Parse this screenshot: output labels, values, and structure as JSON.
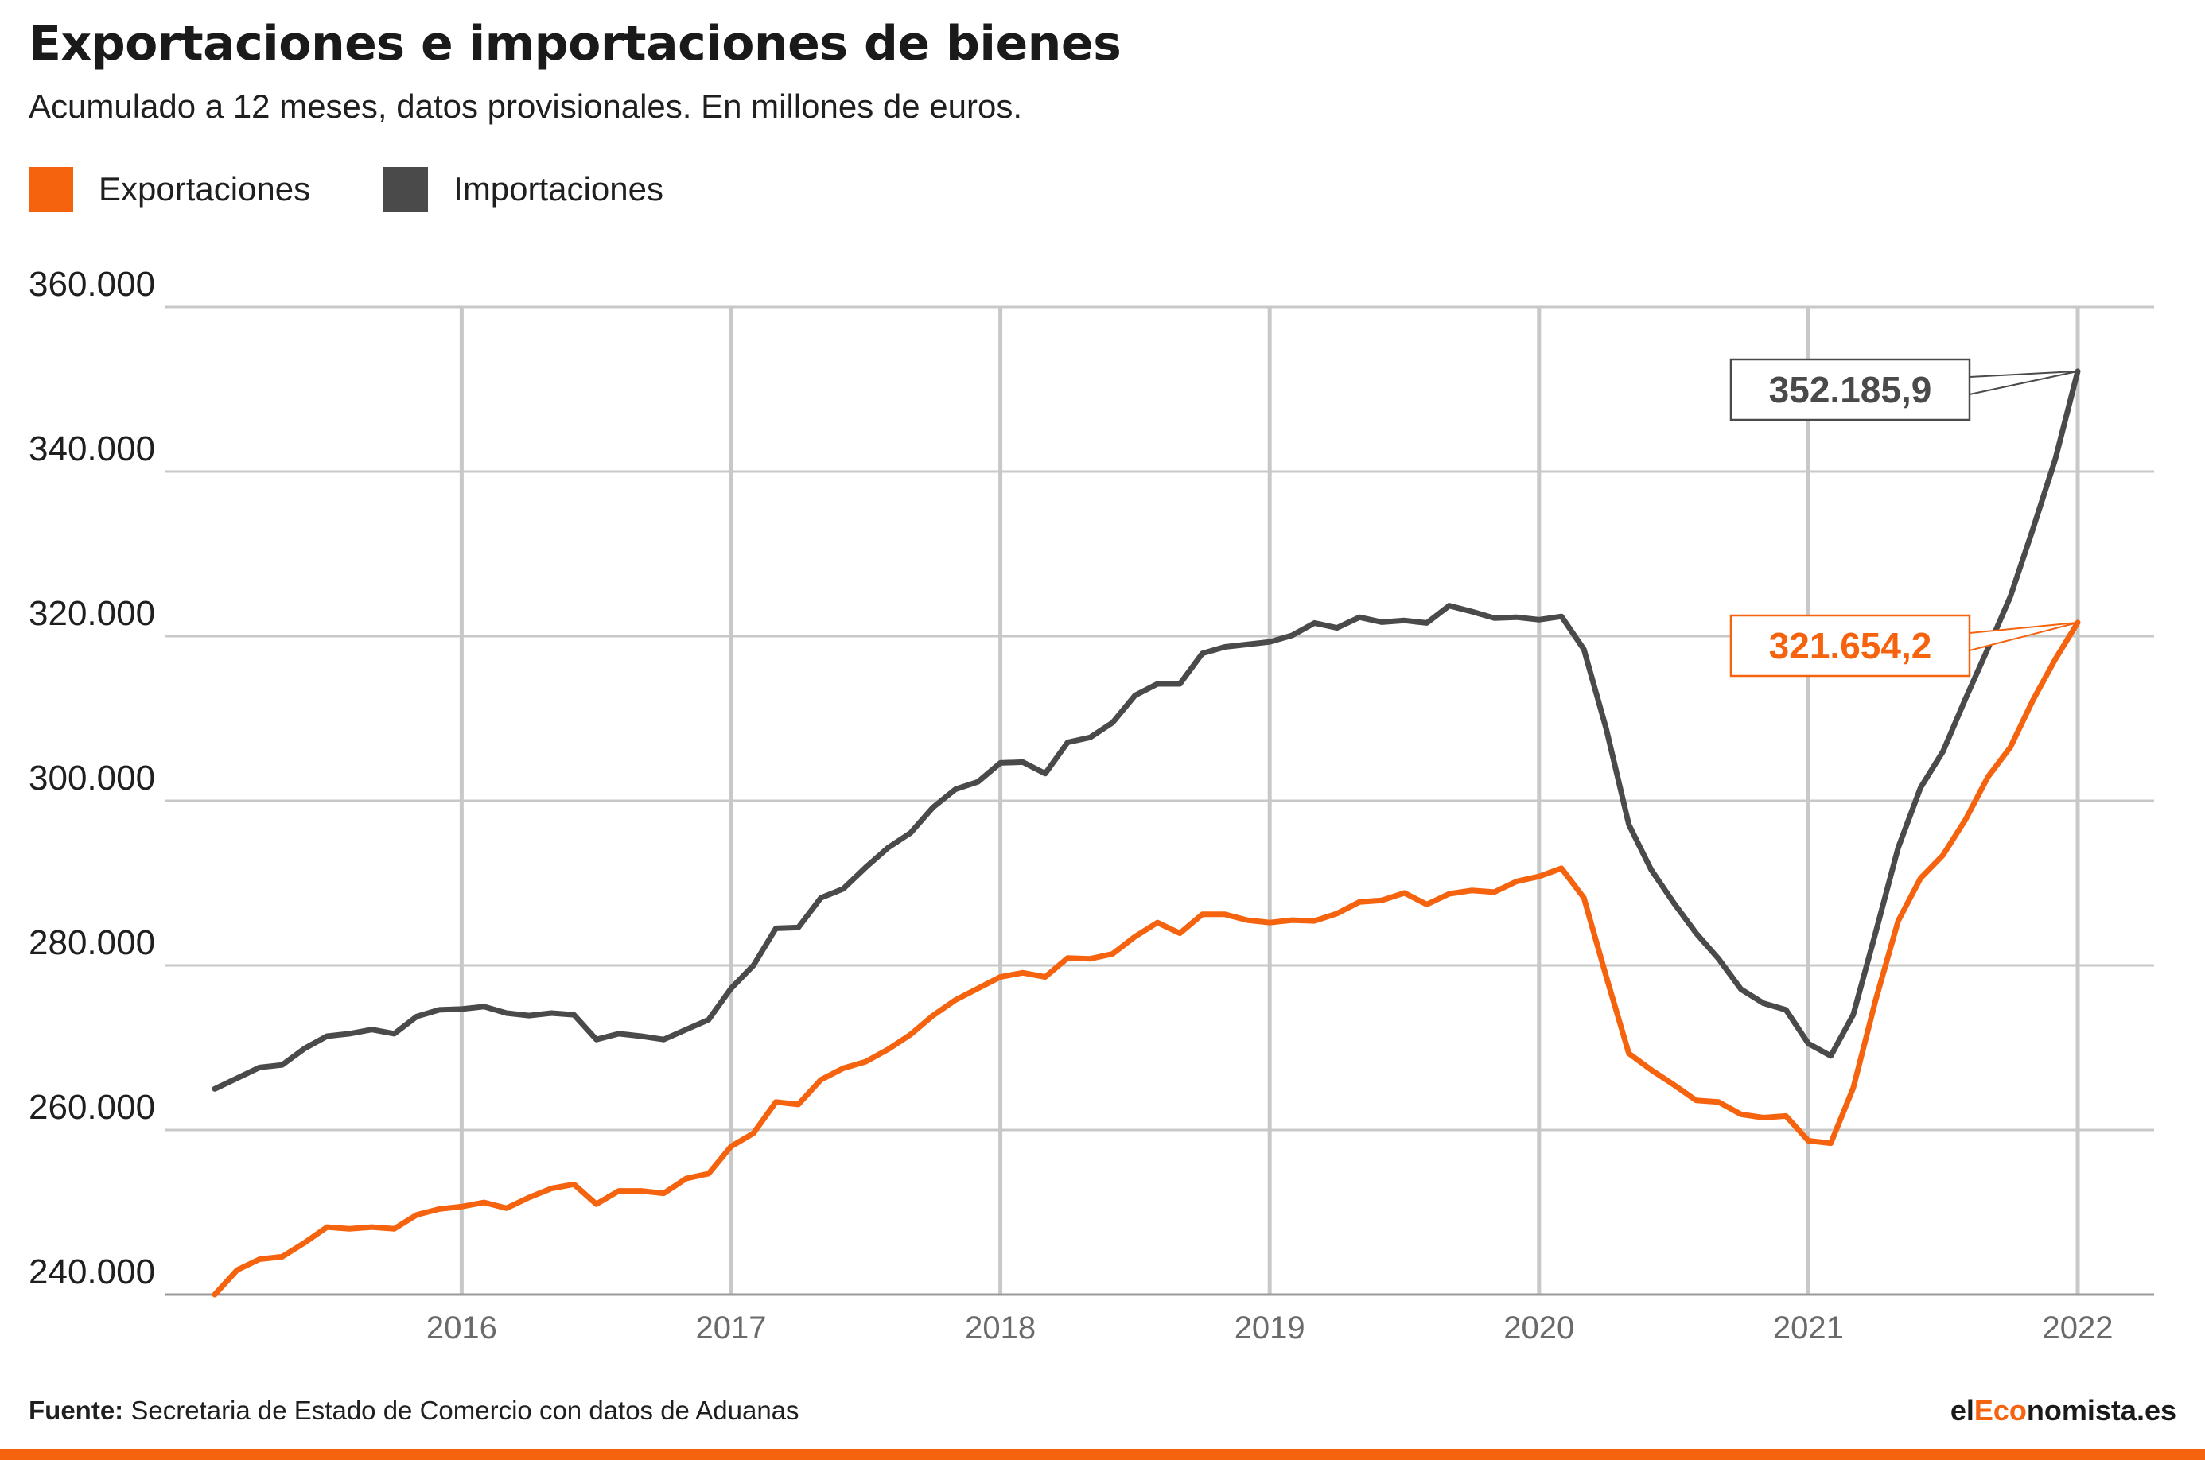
{
  "header": {
    "title": "Exportaciones e importaciones de bienes",
    "subtitle": "Acumulado a 12 meses, datos provisionales. En millones de euros."
  },
  "legend": [
    {
      "label": "Exportaciones",
      "color": "#f5630f"
    },
    {
      "label": "Importaciones",
      "color": "#4a4a4a"
    }
  ],
  "footer": {
    "source_label": "Fuente:",
    "source_text": "Secretaria de Estado de Comercio con datos de Aduanas",
    "brand_prefix": "el",
    "brand_accent": "Eco",
    "brand_suffix": "nomista.es"
  },
  "colors": {
    "exports": "#f5630f",
    "imports": "#4a4a4a",
    "grid": "#c8c8c8"
  },
  "chart_data": {
    "type": "line",
    "x_start": "2015-02",
    "x_step": "1 month",
    "ylim": [
      240000,
      360000
    ],
    "yticks": [
      "240.000",
      "260.000",
      "280.000",
      "300.000",
      "320.000",
      "340.000",
      "360.000"
    ],
    "xticks": [
      "2016",
      "2017",
      "2018",
      "2019",
      "2020",
      "2021",
      "2022"
    ],
    "grid": "vertical at years, horizontal at y ticks",
    "series": [
      {
        "name": "Exportaciones",
        "color": "#f5630f",
        "last_label": "321.654,2",
        "values": [
          240000,
          243000,
          244300,
          244600,
          246300,
          248200,
          248000,
          248200,
          248000,
          249700,
          250400,
          250700,
          251200,
          250500,
          251800,
          252900,
          253400,
          251000,
          252600,
          252600,
          252300,
          254100,
          254700,
          258000,
          259600,
          263400,
          263100,
          266100,
          267500,
          268300,
          269800,
          271600,
          273900,
          275800,
          277200,
          278600,
          279100,
          278600,
          280900,
          280800,
          281400,
          283500,
          285200,
          283900,
          286200,
          286200,
          285500,
          285200,
          285500,
          285400,
          286300,
          287700,
          287900,
          288800,
          287400,
          288700,
          289100,
          288900,
          290200,
          290800,
          291800,
          288200,
          278600,
          269300,
          267300,
          265500,
          263600,
          263400,
          261900,
          261500,
          261700,
          258700,
          258400,
          265100,
          275800,
          285400,
          290600,
          293400,
          297700,
          302900,
          306500,
          312200,
          317200,
          321654.2
        ]
      },
      {
        "name": "Importaciones",
        "color": "#4a4a4a",
        "last_label": "352.185,9",
        "values": [
          265000,
          266300,
          267600,
          267900,
          269900,
          271400,
          271700,
          272200,
          271700,
          273800,
          274600,
          274700,
          275000,
          274200,
          273900,
          274200,
          274000,
          271000,
          271700,
          271400,
          271000,
          272200,
          273400,
          277200,
          280000,
          284500,
          284600,
          288200,
          289300,
          291900,
          294300,
          296100,
          299200,
          301400,
          302300,
          304600,
          304700,
          303300,
          307100,
          307700,
          309500,
          312800,
          314200,
          314200,
          317900,
          318700,
          319000,
          319300,
          320100,
          321600,
          321000,
          322300,
          321700,
          321900,
          321600,
          323700,
          323000,
          322200,
          322300,
          322000,
          322400,
          318400,
          308700,
          297100,
          291600,
          287600,
          283900,
          280800,
          277100,
          275400,
          274600,
          270500,
          269000,
          274000,
          284000,
          294300,
          301600,
          306000,
          312400,
          318500,
          324800,
          333000,
          341500,
          352185.9
        ]
      }
    ]
  }
}
